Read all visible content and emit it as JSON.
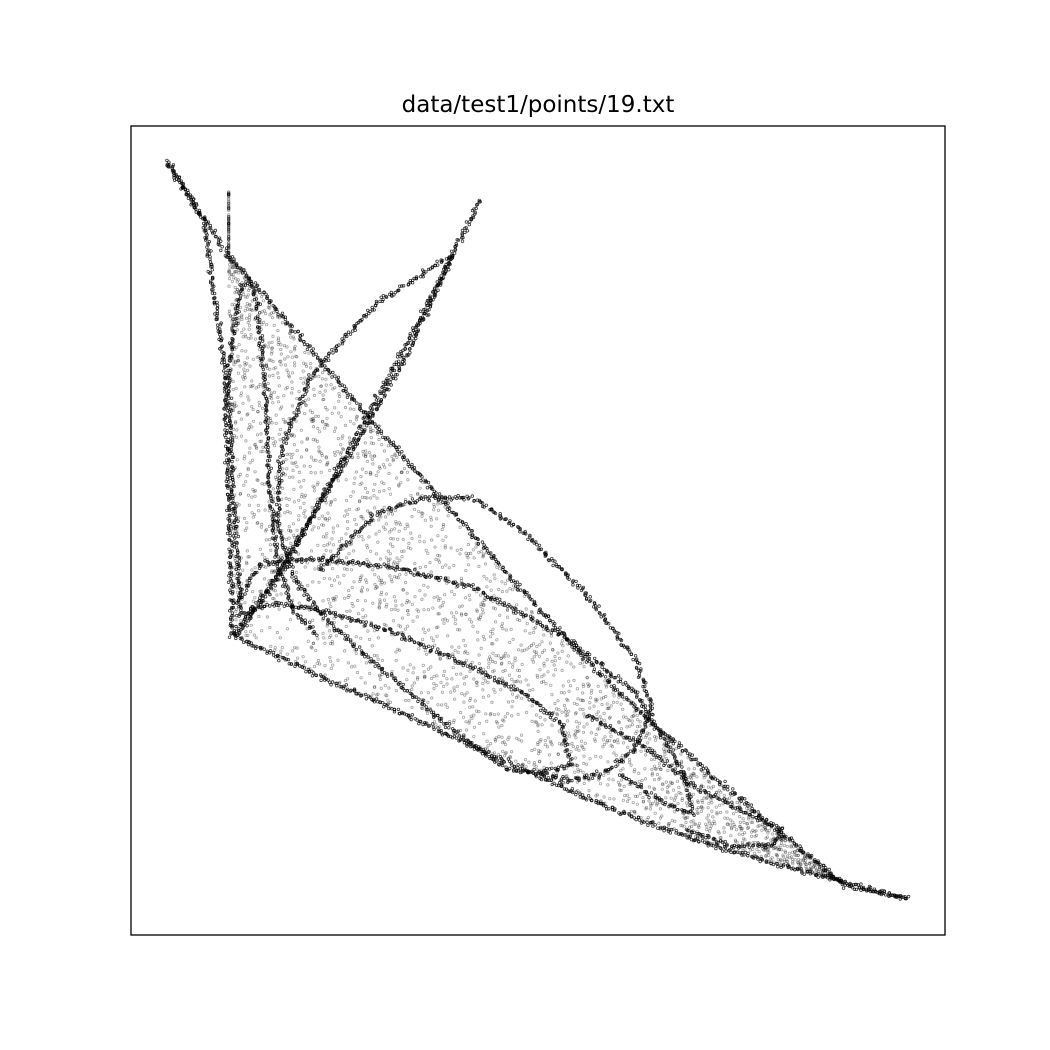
{
  "figure": {
    "background": "#ffffff",
    "axes_frame_color": "#000000"
  },
  "chart_data": {
    "type": "scatter",
    "title": "data/test1/points/19.txt",
    "xlabel": "",
    "ylabel": "",
    "xlim": [
      0,
      100
    ],
    "ylim": [
      0,
      100
    ],
    "ticks_visible": false,
    "grid": false,
    "legend": "none",
    "marker": {
      "color": "#000000",
      "style": "hollow-circle",
      "alpha": 0.35
    },
    "series": [
      {
        "name": "boundary-upper-edge",
        "kind": "line-cluster",
        "points": [
          [
            4.5,
            95.5
          ],
          [
            12,
            84
          ],
          [
            22,
            72.5
          ],
          [
            30,
            63
          ],
          [
            38,
            54
          ],
          [
            46,
            45
          ],
          [
            54,
            36
          ],
          [
            62,
            28
          ],
          [
            70,
            21
          ],
          [
            80,
            12.5
          ],
          [
            88,
            6
          ],
          [
            95.5,
            4.5
          ]
        ]
      },
      {
        "name": "boundary-lower-edge",
        "kind": "line-cluster",
        "points": [
          [
            12.5,
            37
          ],
          [
            22,
            32.5
          ],
          [
            32,
            28
          ],
          [
            45,
            22
          ],
          [
            58,
            16
          ],
          [
            70,
            11.5
          ],
          [
            82,
            8
          ],
          [
            95.5,
            4.5
          ]
        ]
      },
      {
        "name": "left-wall",
        "kind": "line-cluster",
        "points": [
          [
            4.5,
            95.5
          ],
          [
            9,
            88
          ],
          [
            11.5,
            70
          ],
          [
            12,
            55
          ],
          [
            12.5,
            37
          ]
        ]
      },
      {
        "name": "spike-upper",
        "kind": "line-cluster",
        "points": [
          [
            13,
            37
          ],
          [
            18,
            44
          ],
          [
            24,
            55
          ],
          [
            30,
            66
          ],
          [
            36,
            77
          ],
          [
            43,
            91
          ]
        ]
      },
      {
        "name": "spike-lower",
        "kind": "line-cluster",
        "points": [
          [
            12.5,
            37
          ],
          [
            17,
            43
          ],
          [
            23,
            53
          ],
          [
            29,
            63
          ],
          [
            34,
            72
          ],
          [
            39.5,
            84
          ]
        ]
      },
      {
        "name": "loop-tall",
        "kind": "line-cluster",
        "points": [
          [
            39.5,
            84
          ],
          [
            30,
            78
          ],
          [
            22,
            69
          ],
          [
            18.5,
            60
          ],
          [
            18,
            51
          ],
          [
            20,
            44
          ],
          [
            25,
            38
          ],
          [
            33,
            31
          ],
          [
            40,
            25
          ],
          [
            46,
            20.5
          ],
          [
            50,
            20
          ],
          [
            54,
            21
          ],
          [
            53,
            26
          ],
          [
            48,
            30
          ],
          [
            40,
            34
          ],
          [
            32,
            37.5
          ],
          [
            24,
            40
          ],
          [
            18,
            41
          ],
          [
            13,
            39.5
          ]
        ]
      },
      {
        "name": "loop-left-narrow",
        "kind": "line-cluster",
        "points": [
          [
            13.5,
            40
          ],
          [
            12.5,
            55
          ],
          [
            12,
            70
          ],
          [
            13.5,
            80
          ],
          [
            14.5,
            81
          ],
          [
            15.5,
            78
          ],
          [
            16.5,
            68
          ],
          [
            17,
            56
          ],
          [
            18,
            46
          ],
          [
            20,
            40
          ],
          [
            23,
            37
          ]
        ]
      },
      {
        "name": "loop-middle",
        "kind": "line-cluster",
        "points": [
          [
            23,
            45
          ],
          [
            30,
            52
          ],
          [
            36,
            54
          ],
          [
            42,
            54
          ],
          [
            48,
            50
          ],
          [
            56,
            42
          ],
          [
            62,
            34
          ],
          [
            64,
            28
          ],
          [
            62,
            23
          ],
          [
            58,
            20
          ],
          [
            54,
            19
          ],
          [
            50,
            20
          ]
        ]
      },
      {
        "name": "loop-bottom",
        "kind": "line-cluster",
        "points": [
          [
            13,
            41
          ],
          [
            16,
            46
          ],
          [
            23,
            46.5
          ],
          [
            32,
            45.5
          ],
          [
            42,
            43
          ],
          [
            53,
            37
          ],
          [
            62,
            30
          ],
          [
            68,
            20
          ],
          [
            69,
            15
          ],
          [
            66,
            16
          ],
          [
            60,
            20
          ]
        ]
      },
      {
        "name": "loop-lower-right",
        "kind": "line-cluster",
        "points": [
          [
            56,
            27
          ],
          [
            62,
            24
          ],
          [
            70,
            18
          ],
          [
            76,
            15
          ],
          [
            80,
            13
          ],
          [
            79,
            11
          ],
          [
            74,
            11
          ],
          [
            68,
            13
          ]
        ]
      }
    ]
  }
}
